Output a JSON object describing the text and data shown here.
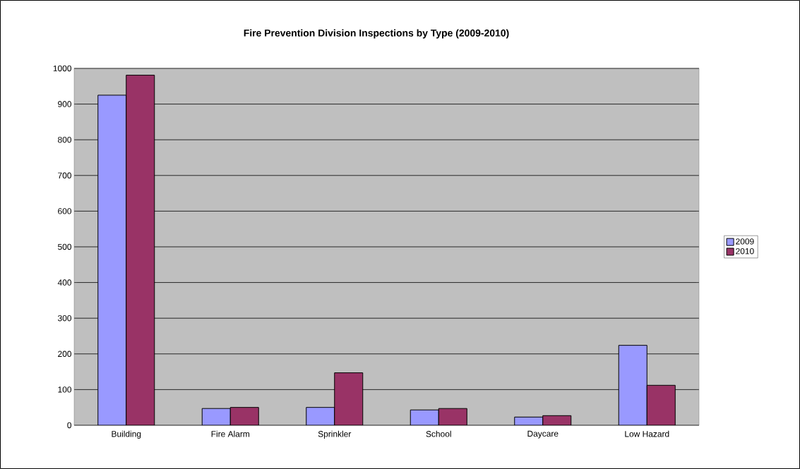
{
  "chart_data": {
    "type": "bar",
    "title": "Fire Prevention Division Inspections by Type (2009-2010)",
    "categories": [
      "Building",
      "Fire Alarm",
      "Sprinkler",
      "School",
      "Daycare",
      "Low Hazard"
    ],
    "series": [
      {
        "name": "2009",
        "color": "#9999ff",
        "values": [
          925,
          47,
          50,
          43,
          23,
          224
        ]
      },
      {
        "name": "2010",
        "color": "#993366",
        "values": [
          981,
          50,
          147,
          47,
          27,
          112
        ]
      }
    ],
    "ylim": [
      0,
      1000
    ],
    "yticks": [
      0,
      100,
      200,
      300,
      400,
      500,
      600,
      700,
      800,
      900,
      1000
    ],
    "grid": "y",
    "legend": "right"
  }
}
